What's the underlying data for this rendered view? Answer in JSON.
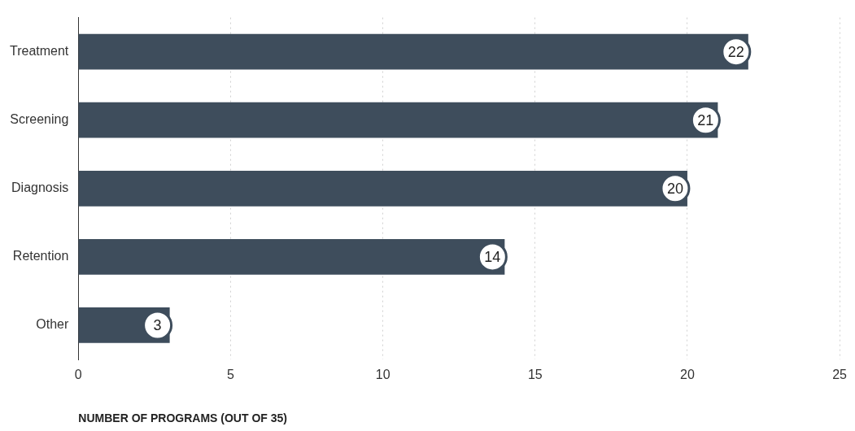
{
  "chart_data": {
    "type": "bar",
    "orientation": "horizontal",
    "xlabel": "NUMBER OF PROGRAMS (OUT OF 35)",
    "categories": [
      "Treatment",
      "Screening",
      "Diagnosis",
      "Retention",
      "Other"
    ],
    "values": [
      22,
      21,
      20,
      14,
      3
    ],
    "color": "#3e4d5c",
    "data_labels": true,
    "xlim": [
      0,
      25
    ],
    "xticks": [
      0,
      5,
      10,
      15,
      20,
      25
    ],
    "grid": "x",
    "legend": false
  }
}
